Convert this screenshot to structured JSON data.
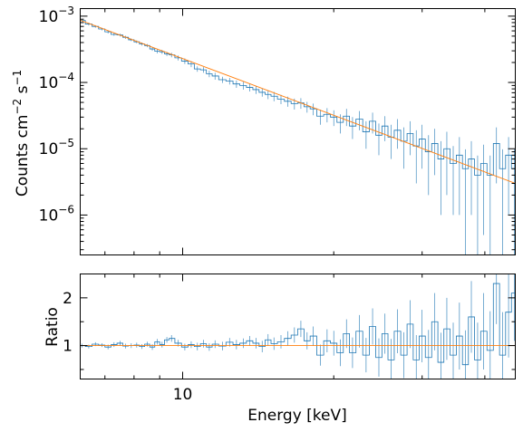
{
  "figure": {
    "colors": {
      "data": "#1f77b4",
      "model": "#ff7f0e",
      "axes": "#000000"
    }
  },
  "chart_data": [
    {
      "type": "line",
      "panel": "top",
      "xscale": "log",
      "yscale": "log",
      "xlim": [
        6.25,
        46.0
      ],
      "ylim": [
        2.5e-07,
        0.0013
      ],
      "xlabel": "",
      "ylabel_parts": {
        "base": "Counts cm",
        "exp1": "−2",
        "mid": " s",
        "exp2": "−1"
      },
      "yticks": [
        {
          "value": 0.001,
          "base": "10",
          "exp": "−3"
        },
        {
          "value": 0.0001,
          "base": "10",
          "exp": "−4"
        },
        {
          "value": 1e-05,
          "base": "10",
          "exp": "−5"
        },
        {
          "value": 1e-06,
          "base": "10",
          "exp": "−6"
        }
      ],
      "series": [
        {
          "kind": "data",
          "style": "step-with-errors",
          "points": [
            [
              6.3,
              0.00086,
              4e-05
            ],
            [
              6.5,
              0.00076,
              3.5e-05
            ],
            [
              6.7,
              0.0007,
              3e-05
            ],
            [
              6.9,
              0.00064,
              3e-05
            ],
            [
              7.1,
              0.00058,
              3e-05
            ],
            [
              7.3,
              0.00053,
              2.5e-05
            ],
            [
              7.5,
              0.00052,
              2.5e-05
            ],
            [
              7.7,
              0.00048,
              2.5e-05
            ],
            [
              7.9,
              0.00044,
              2e-05
            ],
            [
              8.1,
              0.00041,
              2e-05
            ],
            [
              8.3,
              0.00038,
              2e-05
            ],
            [
              8.5,
              0.00036,
              2e-05
            ],
            [
              8.7,
              0.00032,
              2e-05
            ],
            [
              8.9,
              0.000295,
              2e-05
            ],
            [
              9.1,
              0.00029,
              2e-05
            ],
            [
              9.3,
              0.00027,
              2e-05
            ],
            [
              9.5,
              0.00026,
              2e-05
            ],
            [
              9.8,
              0.000235,
              2e-05
            ],
            [
              10.1,
              0.00021,
              2e-05
            ],
            [
              10.4,
              0.00019,
              2e-05
            ],
            [
              10.7,
              0.00016,
              1.5e-05
            ],
            [
              11.0,
              0.000155,
              1.5e-05
            ],
            [
              11.3,
              0.000135,
              1.5e-05
            ],
            [
              11.6,
              0.000125,
              1.5e-05
            ],
            [
              12.0,
              0.00011,
              1.2e-05
            ],
            [
              12.4,
              0.000105,
              1.2e-05
            ],
            [
              12.8,
              9.5e-05,
              1.2e-05
            ],
            [
              13.2,
              9e-05,
              1.2e-05
            ],
            [
              13.6,
              8.4e-05,
              1.1e-05
            ],
            [
              14.0,
              7.8e-05,
              1.1e-05
            ],
            [
              14.4,
              7.1e-05,
              1e-05
            ],
            [
              14.8,
              6.6e-05,
              1e-05
            ],
            [
              15.2,
              6.2e-05,
              1e-05
            ],
            [
              15.7,
              5.6e-05,
              9e-06
            ],
            [
              16.2,
              5.2e-05,
              9e-06
            ],
            [
              16.7,
              4.8e-05,
              9e-06
            ],
            [
              17.2,
              4.9e-05,
              9e-06
            ],
            [
              17.7,
              4.3e-05,
              8e-06
            ],
            [
              18.2,
              4e-05,
              8e-06
            ],
            [
              18.8,
              3.1e-05,
              8e-06
            ],
            [
              19.4,
              3.3e-05,
              8e-06
            ],
            [
              20.0,
              3e-05,
              8e-06
            ],
            [
              20.6,
              2.5e-05,
              8e-06
            ],
            [
              21.2,
              3.1e-05,
              9e-06
            ],
            [
              21.8,
              2.2e-05,
              8e-06
            ],
            [
              22.5,
              2.8e-05,
              9e-06
            ],
            [
              23.2,
              1.8e-05,
              8e-06
            ],
            [
              23.9,
              2.6e-05,
              9e-06
            ],
            [
              24.6,
              1.6e-05,
              8e-06
            ],
            [
              25.3,
              2.2e-05,
              9e-06
            ],
            [
              26.0,
              1.5e-05,
              8e-06
            ],
            [
              26.8,
              1.9e-05,
              9e-06
            ],
            [
              27.6,
              1.3e-05,
              8e-06
            ],
            [
              28.4,
              1.7e-05,
              9e-06
            ],
            [
              29.2,
              1.1e-05,
              8e-06
            ],
            [
              30.0,
              1.4e-05,
              9e-06
            ],
            [
              30.9,
              9e-06,
              7e-06
            ],
            [
              31.8,
              1.2e-05,
              8e-06
            ],
            [
              32.7,
              7e-06,
              6e-06
            ],
            [
              33.6,
              1e-05,
              8e-06
            ],
            [
              34.6,
              6e-06,
              5e-06
            ],
            [
              35.6,
              8e-06,
              7e-06
            ],
            [
              36.6,
              5e-06,
              4.8e-06
            ],
            [
              37.6,
              7e-06,
              6e-06
            ],
            [
              38.7,
              4e-06,
              3.9e-06
            ],
            [
              39.8,
              6e-06,
              5.5e-06
            ],
            [
              41.0,
              4e-06,
              3.9e-06
            ],
            [
              42.2,
              1.2e-05,
              9e-06
            ],
            [
              43.4,
              5e-06,
              4.8e-06
            ],
            [
              44.6,
              8e-06,
              7e-06
            ],
            [
              45.8,
              5e-06,
              4.8e-06
            ]
          ]
        },
        {
          "kind": "model",
          "style": "line",
          "points": [
            [
              6.25,
              0.00087
            ],
            [
              46.0,
              3e-06
            ]
          ]
        }
      ]
    },
    {
      "type": "line",
      "panel": "bottom",
      "xscale": "log",
      "yscale": "linear",
      "xlim": [
        6.25,
        46.0
      ],
      "ylim": [
        0.3,
        2.5
      ],
      "xlabel": "Energy [keV]",
      "ylabel": "Ratio",
      "yticks": [
        {
          "value": 1,
          "label": "1"
        },
        {
          "value": 2,
          "label": "2"
        }
      ],
      "xticks": [
        {
          "value": 10,
          "label": "10"
        }
      ],
      "series": [
        {
          "kind": "data",
          "style": "step-with-errors",
          "points": [
            [
              6.3,
              1.0,
              0.04
            ],
            [
              6.5,
              0.98,
              0.04
            ],
            [
              6.7,
              1.03,
              0.04
            ],
            [
              6.9,
              1.01,
              0.04
            ],
            [
              7.1,
              0.97,
              0.05
            ],
            [
              7.3,
              1.02,
              0.05
            ],
            [
              7.5,
              1.05,
              0.05
            ],
            [
              7.7,
              0.99,
              0.05
            ],
            [
              7.9,
              1.0,
              0.05
            ],
            [
              8.1,
              1.01,
              0.05
            ],
            [
              8.3,
              0.98,
              0.05
            ],
            [
              8.5,
              1.03,
              0.05
            ],
            [
              8.7,
              0.97,
              0.06
            ],
            [
              8.9,
              1.08,
              0.06
            ],
            [
              9.1,
              1.02,
              0.06
            ],
            [
              9.3,
              1.12,
              0.06
            ],
            [
              9.5,
              1.15,
              0.07
            ],
            [
              9.8,
              1.05,
              0.07
            ],
            [
              10.1,
              0.97,
              0.07
            ],
            [
              10.4,
              1.02,
              0.07
            ],
            [
              10.7,
              0.98,
              0.08
            ],
            [
              11.0,
              1.04,
              0.08
            ],
            [
              11.3,
              0.97,
              0.08
            ],
            [
              11.6,
              1.03,
              0.08
            ],
            [
              12.0,
              0.99,
              0.09
            ],
            [
              12.4,
              1.07,
              0.09
            ],
            [
              12.8,
              1.02,
              0.1
            ],
            [
              13.2,
              1.05,
              0.1
            ],
            [
              13.6,
              1.1,
              0.1
            ],
            [
              14.0,
              1.05,
              0.11
            ],
            [
              14.4,
              0.98,
              0.12
            ],
            [
              14.8,
              1.12,
              0.12
            ],
            [
              15.2,
              1.04,
              0.13
            ],
            [
              15.7,
              1.08,
              0.14
            ],
            [
              16.2,
              1.15,
              0.15
            ],
            [
              16.7,
              1.22,
              0.16
            ],
            [
              17.2,
              1.35,
              0.17
            ],
            [
              17.7,
              1.1,
              0.18
            ],
            [
              18.2,
              1.2,
              0.2
            ],
            [
              18.8,
              0.8,
              0.22
            ],
            [
              19.4,
              1.1,
              0.24
            ],
            [
              20.0,
              1.05,
              0.26
            ],
            [
              20.6,
              0.85,
              0.28
            ],
            [
              21.2,
              1.25,
              0.3
            ],
            [
              21.8,
              0.85,
              0.32
            ],
            [
              22.5,
              1.3,
              0.34
            ],
            [
              23.2,
              0.8,
              0.36
            ],
            [
              23.9,
              1.4,
              0.38
            ],
            [
              24.6,
              0.75,
              0.4
            ],
            [
              25.3,
              1.25,
              0.42
            ],
            [
              26.0,
              0.7,
              0.44
            ],
            [
              26.8,
              1.3,
              0.46
            ],
            [
              27.6,
              0.8,
              0.48
            ],
            [
              28.4,
              1.45,
              0.5
            ],
            [
              29.2,
              0.7,
              0.52
            ],
            [
              30.0,
              1.2,
              0.55
            ],
            [
              30.9,
              0.75,
              0.58
            ],
            [
              31.8,
              1.5,
              0.6
            ],
            [
              32.7,
              0.65,
              0.62
            ],
            [
              33.6,
              1.35,
              0.65
            ],
            [
              34.6,
              0.8,
              0.68
            ],
            [
              35.6,
              1.2,
              0.7
            ],
            [
              36.6,
              0.6,
              0.72
            ],
            [
              37.6,
              1.6,
              0.75
            ],
            [
              38.7,
              0.7,
              0.78
            ],
            [
              39.8,
              1.3,
              0.8
            ],
            [
              41.0,
              0.9,
              0.82
            ],
            [
              42.2,
              2.3,
              0.85
            ],
            [
              43.4,
              0.8,
              0.9
            ],
            [
              44.6,
              1.7,
              0.95
            ],
            [
              45.8,
              2.1,
              1.0
            ]
          ]
        },
        {
          "kind": "model",
          "style": "line",
          "points": [
            [
              6.25,
              1.0
            ],
            [
              46.0,
              1.0
            ]
          ]
        }
      ]
    }
  ]
}
